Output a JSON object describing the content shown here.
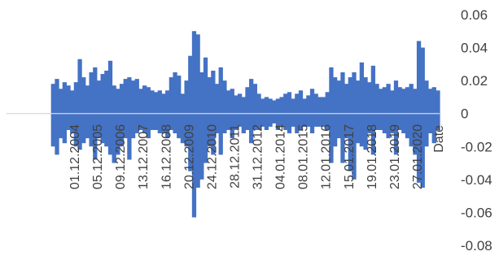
{
  "chart_data": {
    "type": "bar",
    "title": "",
    "xlabel": "Date",
    "ylabel": "",
    "ylim": [
      -0.08,
      0.06
    ],
    "grid": false,
    "legend": "none",
    "color": "#4472C4",
    "y_ticks": [
      "0.06",
      "0.04",
      "0.02",
      "0",
      "-0.02",
      "-0.04",
      "-0.06",
      "-0.08"
    ],
    "y_tick_values": [
      0.06,
      0.04,
      0.02,
      0,
      -0.02,
      -0.04,
      -0.06,
      -0.08
    ],
    "x_ticks": [
      "01.12.2004",
      "05.12.2005",
      "09.12.2006",
      "13.12.2007",
      "16.12.2008",
      "20.12.2009",
      "24.12.2010",
      "28.12.2011",
      "31.12.2012",
      "04.01.2014",
      "08.01.2015",
      "12.01.2016",
      "15.01.2017",
      "19.01.2018",
      "23.01.2019",
      "27.01.2020"
    ],
    "series": [
      {
        "values": [
          [
            0.0,
            0.0
          ],
          [
            0.018,
            -0.02
          ],
          [
            0.021,
            -0.025
          ],
          [
            0.015,
            -0.015
          ],
          [
            0.019,
            -0.018
          ],
          [
            0.017,
            -0.01
          ],
          [
            0.014,
            -0.012
          ],
          [
            0.019,
            -0.02
          ],
          [
            0.033,
            -0.022
          ],
          [
            0.022,
            -0.018
          ],
          [
            0.017,
            -0.015
          ],
          [
            0.025,
            -0.02
          ],
          [
            0.028,
            -0.028
          ],
          [
            0.02,
            -0.015
          ],
          [
            0.024,
            -0.018
          ],
          [
            0.026,
            -0.02
          ],
          [
            0.032,
            -0.025
          ],
          [
            0.017,
            -0.03
          ],
          [
            0.015,
            -0.025
          ],
          [
            0.018,
            -0.02
          ],
          [
            0.021,
            -0.015
          ],
          [
            0.022,
            -0.028
          ],
          [
            0.02,
            -0.015
          ],
          [
            0.021,
            -0.012
          ],
          [
            0.015,
            -0.01
          ],
          [
            0.017,
            -0.012
          ],
          [
            0.016,
            -0.015
          ],
          [
            0.014,
            -0.01
          ],
          [
            0.013,
            -0.01
          ],
          [
            0.014,
            -0.012
          ],
          [
            0.012,
            -0.012
          ],
          [
            0.014,
            -0.015
          ],
          [
            0.022,
            -0.01
          ],
          [
            0.025,
            -0.012
          ],
          [
            0.023,
            -0.015
          ],
          [
            0.012,
            -0.018
          ],
          [
            0.02,
            -0.02
          ],
          [
            0.035,
            -0.035
          ],
          [
            0.05,
            -0.063
          ],
          [
            0.048,
            -0.045
          ],
          [
            0.025,
            -0.04
          ],
          [
            0.034,
            -0.03
          ],
          [
            0.022,
            -0.02
          ],
          [
            0.026,
            -0.025
          ],
          [
            0.018,
            -0.012
          ],
          [
            0.028,
            -0.025
          ],
          [
            0.02,
            -0.012
          ],
          [
            0.014,
            -0.01
          ],
          [
            0.015,
            -0.015
          ],
          [
            0.011,
            -0.01
          ],
          [
            0.012,
            -0.008
          ],
          [
            0.01,
            -0.012
          ],
          [
            0.016,
            -0.01
          ],
          [
            0.021,
            -0.018
          ],
          [
            0.018,
            -0.01
          ],
          [
            0.012,
            -0.01
          ],
          [
            0.009,
            -0.008
          ],
          [
            0.01,
            -0.01
          ],
          [
            0.009,
            -0.008
          ],
          [
            0.008,
            -0.006
          ],
          [
            0.009,
            -0.01
          ],
          [
            0.01,
            -0.008
          ],
          [
            0.012,
            -0.01
          ],
          [
            0.013,
            -0.012
          ],
          [
            0.009,
            -0.008
          ],
          [
            0.012,
            -0.012
          ],
          [
            0.014,
            -0.01
          ],
          [
            0.009,
            -0.008
          ],
          [
            0.011,
            -0.008
          ],
          [
            0.015,
            -0.012
          ],
          [
            0.012,
            -0.008
          ],
          [
            0.01,
            -0.008
          ],
          [
            0.01,
            -0.008
          ],
          [
            0.013,
            -0.01
          ],
          [
            0.028,
            -0.03
          ],
          [
            0.022,
            -0.02
          ],
          [
            0.02,
            -0.015
          ],
          [
            0.025,
            -0.03
          ],
          [
            0.018,
            -0.015
          ],
          [
            0.022,
            -0.035
          ],
          [
            0.025,
            -0.04
          ],
          [
            0.02,
            -0.018
          ],
          [
            0.031,
            -0.02
          ],
          [
            0.022,
            -0.022
          ],
          [
            0.019,
            -0.012
          ],
          [
            0.029,
            -0.025
          ],
          [
            0.018,
            -0.01
          ],
          [
            0.015,
            -0.01
          ],
          [
            0.016,
            -0.012
          ],
          [
            0.018,
            -0.015
          ],
          [
            0.014,
            -0.012
          ],
          [
            0.02,
            -0.025
          ],
          [
            0.016,
            -0.01
          ],
          [
            0.015,
            -0.012
          ],
          [
            0.016,
            -0.015
          ],
          [
            0.018,
            -0.02
          ],
          [
            0.015,
            -0.025
          ],
          [
            0.044,
            -0.042
          ],
          [
            0.04,
            -0.045
          ],
          [
            0.02,
            -0.02
          ],
          [
            0.015,
            -0.012
          ],
          [
            0.016,
            -0.018
          ],
          [
            0.014,
            -0.01
          ]
        ]
      }
    ]
  }
}
